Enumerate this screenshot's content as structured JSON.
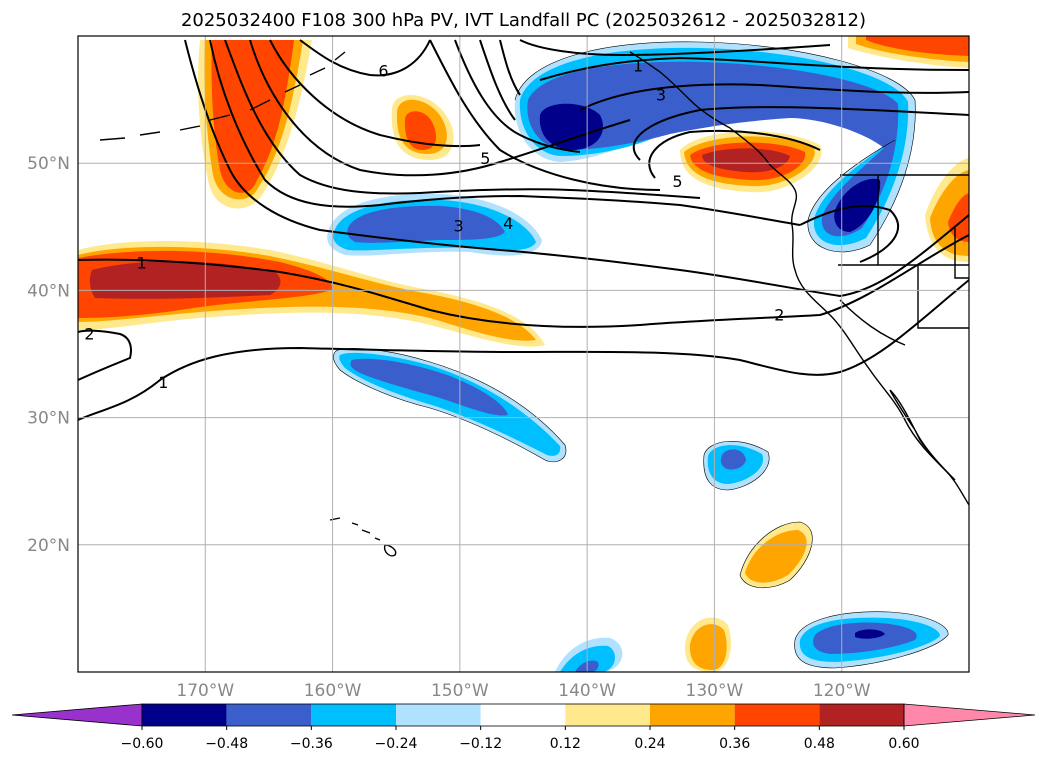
{
  "chart_data": {
    "type": "heatmap",
    "title": "2025032400 F108 300 hPa PV, IVT Landfall PC (2025032612 - 2025032812)",
    "map": {
      "lon_range": [
        -180,
        -110
      ],
      "lat_range": [
        10,
        60
      ],
      "lat_ticks": [
        "20°N",
        "30°N",
        "40°N",
        "50°N"
      ],
      "lat_values": [
        20,
        30,
        40,
        50
      ],
      "lon_ticks": [
        "170°W",
        "160°W",
        "150°W",
        "140°W",
        "130°W",
        "120°W"
      ],
      "lon_values": [
        -170,
        -160,
        -150,
        -140,
        -130,
        -120
      ],
      "grid": true
    },
    "contour_labels": [
      {
        "text": "1",
        "lon": -175,
        "lat": 42.2
      },
      {
        "text": "2",
        "lon": -179.1,
        "lat": 36.6
      },
      {
        "text": "1",
        "lon": -173.3,
        "lat": 32.8
      },
      {
        "text": "6",
        "lon": -156.0,
        "lat": 57.3
      },
      {
        "text": "5",
        "lon": -148.0,
        "lat": 50.4
      },
      {
        "text": "4",
        "lon": -146.2,
        "lat": 45.3
      },
      {
        "text": "3",
        "lon": -150.1,
        "lat": 45.1
      },
      {
        "text": "1",
        "lon": -136.0,
        "lat": 57.7
      },
      {
        "text": "3",
        "lon": -134.2,
        "lat": 55.4
      },
      {
        "text": "5",
        "lon": -132.9,
        "lat": 48.6
      },
      {
        "text": "2",
        "lon": -124.9,
        "lat": 38.1
      }
    ],
    "colorbar": {
      "ticks": [
        "−0.60",
        "−0.48",
        "−0.36",
        "−0.24",
        "−0.12",
        "0.12",
        "0.24",
        "0.36",
        "0.48",
        "0.60"
      ],
      "levels": [
        -0.6,
        -0.48,
        -0.36,
        -0.24,
        -0.12,
        0.12,
        0.24,
        0.36,
        0.48,
        0.6
      ],
      "colors": [
        "#9932cc",
        "#00008b",
        "#3a5fcd",
        "#00bfff",
        "#b0e2ff",
        "#ffffff",
        "#ffe98c",
        "#ffa500",
        "#ff4500",
        "#b22222",
        "#ff88aa"
      ]
    }
  }
}
